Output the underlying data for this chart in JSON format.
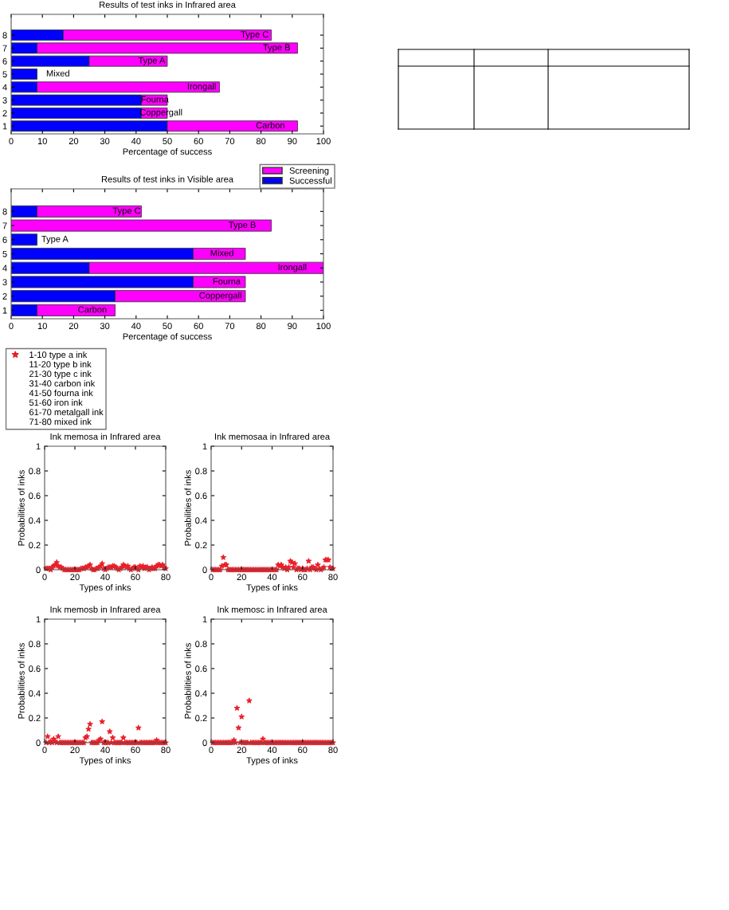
{
  "chart_data": [
    {
      "type": "bar",
      "orientation": "horizontal",
      "stacked": true,
      "title": "Results of test inks in Infrared area",
      "xlabel": "Percentage of success",
      "categories": [
        "8",
        "7",
        "6",
        "5",
        "4",
        "3",
        "2",
        "1"
      ],
      "series": [
        {
          "name": "Successful",
          "color": "#0000ff",
          "values": [
            16.7,
            8.3,
            25,
            8.3,
            8.3,
            41.7,
            41.7,
            50
          ]
        },
        {
          "name": "Screening",
          "color": "#ff00ff",
          "values": [
            66.6,
            83.4,
            25,
            0,
            58.4,
            8.3,
            8.3,
            41.7
          ]
        }
      ],
      "xlim": [
        0,
        100
      ],
      "xticks": [
        0,
        10,
        20,
        30,
        40,
        50,
        60,
        70,
        80,
        90,
        100
      ],
      "grid": false,
      "legend": "bottom right",
      "annotations": [
        {
          "text": "Type C",
          "x": 78,
          "y": "8"
        },
        {
          "text": "Type B",
          "x": 85,
          "y": "7"
        },
        {
          "text": "Type A",
          "x": 45,
          "y": "6"
        },
        {
          "text": "Mixed",
          "x": 15,
          "y": "5"
        },
        {
          "text": "Irongall",
          "x": 61,
          "y": "4"
        },
        {
          "text": "Fourna",
          "x": 46,
          "y": "3"
        },
        {
          "text": "Coppergall",
          "x": 48,
          "y": "2"
        },
        {
          "text": "Carbon",
          "x": 83,
          "y": "1"
        }
      ]
    },
    {
      "type": "bar",
      "orientation": "horizontal",
      "stacked": true,
      "title": "Results of test inks in Visible area",
      "xlabel": "Percentage of success",
      "categories": [
        "8",
        "7",
        "6",
        "5",
        "4",
        "3",
        "2",
        "1"
      ],
      "series": [
        {
          "color": "#0000ff",
          "values": [
            8.3,
            0,
            8.3,
            58.3,
            25,
            58.3,
            33.3,
            8.3
          ]
        },
        {
          "color": "#ff00ff",
          "values": [
            33.4,
            83.3,
            0,
            16.7,
            75,
            16.7,
            41.7,
            25
          ]
        }
      ],
      "xlim": [
        0,
        100
      ],
      "xticks": [
        0,
        10,
        20,
        30,
        40,
        50,
        60,
        70,
        80,
        90,
        100
      ],
      "grid": false,
      "legend": false,
      "annotations": [
        {
          "text": "Type C",
          "x": 37,
          "y": "8"
        },
        {
          "text": "Type B",
          "x": 74,
          "y": "7"
        },
        {
          "text": "Type A",
          "x": 14,
          "y": "6"
        },
        {
          "text": "Mixed",
          "x": 67.5,
          "y": "5"
        },
        {
          "text": "Irongall",
          "x": 90,
          "y": "4"
        },
        {
          "text": "Fourna",
          "x": 69,
          "y": "3"
        },
        {
          "text": "Coppergall",
          "x": 67,
          "y": "2"
        },
        {
          "text": "Carbon",
          "x": 26,
          "y": "1"
        }
      ]
    },
    {
      "type": "scatter",
      "title": "Ink memosa in Infrared area",
      "xlabel": "Types of inks",
      "ylabel": "Probabilities of inks",
      "marker": "star",
      "grid": false,
      "legend": "top left",
      "x": [
        1,
        2,
        3,
        4,
        5,
        6,
        7,
        8,
        9,
        10,
        11,
        12,
        13,
        14,
        15,
        16,
        17,
        18,
        19,
        20,
        21,
        22,
        23,
        24,
        25,
        26,
        27,
        28,
        29,
        30,
        31,
        32,
        33,
        34,
        35,
        36,
        37,
        38,
        39,
        40,
        41,
        42,
        43,
        44,
        45,
        46,
        47,
        48,
        49,
        50,
        51,
        52,
        53,
        54,
        55,
        56,
        57,
        58,
        59,
        60,
        61,
        62,
        63,
        64,
        65,
        66,
        67,
        68,
        69,
        70,
        71,
        72,
        73,
        74,
        75,
        76,
        77,
        78,
        79,
        80
      ],
      "series": [
        {
          "name": "1-10 type a ink",
          "color": "#e8202a",
          "values": [
            0.01,
            0.01,
            0.01,
            0,
            0.02,
            0.03,
            0.04,
            0.06,
            0.03,
            0.02,
            0.02,
            0.01,
            0,
            0,
            0,
            0,
            0,
            0,
            0,
            0,
            0,
            0,
            0,
            0.01,
            0.01,
            0.01,
            0.02,
            0.02,
            0.03,
            0.04,
            0.01,
            0,
            0,
            0.01,
            0.01,
            0.02,
            0.03,
            0.05,
            0.01,
            0,
            0.01,
            0.02,
            0.02,
            0.02,
            0.03,
            0.03,
            0.02,
            0.01,
            0,
            0.01,
            0.02,
            0.04,
            0.03,
            0.02,
            0.03,
            0.01,
            0,
            0.01,
            0.02,
            0.02,
            0.01,
            0,
            0.03,
            0.02,
            0.03,
            0.01,
            0.02,
            0.02,
            0,
            0.01,
            0.02,
            0.01,
            0.01,
            0.03,
            0.04,
            0.04,
            0.03,
            0.04,
            0.02,
            0.01
          ]
        }
      ],
      "annotations": [
        "11-20 type b ink",
        "21-30 type c ink",
        "31-40 carbon ink",
        "41-50 fourna ink",
        "51-60 iron ink",
        "61-70 metalgall ink",
        "71-80 mixed ink"
      ],
      "xlim": [
        0,
        80
      ],
      "xticks": [
        0,
        20,
        40,
        60,
        80
      ],
      "ylim": [
        0,
        1
      ],
      "yticks": [
        0,
        0.2,
        0.4,
        0.6,
        0.8,
        1
      ]
    },
    {
      "type": "scatter",
      "title": "Ink memosaa in Infrared area",
      "xlabel": "Types of inks",
      "ylabel": "Probabilities of inks",
      "marker": "star",
      "grid": false,
      "x": [
        1,
        2,
        3,
        4,
        5,
        6,
        7,
        8,
        9,
        10,
        11,
        12,
        13,
        14,
        15,
        16,
        17,
        18,
        19,
        20,
        21,
        22,
        23,
        24,
        25,
        26,
        27,
        28,
        29,
        30,
        31,
        32,
        33,
        34,
        35,
        36,
        37,
        38,
        39,
        40,
        41,
        42,
        43,
        44,
        45,
        46,
        47,
        48,
        49,
        50,
        51,
        52,
        53,
        54,
        55,
        56,
        57,
        58,
        59,
        60,
        61,
        62,
        63,
        64,
        65,
        66,
        67,
        68,
        69,
        70,
        71,
        72,
        73,
        74,
        75,
        76,
        77,
        78,
        79,
        80
      ],
      "series": [
        {
          "color": "#e8202a",
          "values": [
            0,
            0,
            0,
            0,
            0,
            0,
            0.03,
            0.1,
            0.04,
            0.04,
            0,
            0,
            0,
            0,
            0,
            0,
            0,
            0,
            0,
            0,
            0,
            0,
            0,
            0,
            0,
            0,
            0,
            0,
            0,
            0,
            0,
            0,
            0,
            0,
            0,
            0,
            0,
            0,
            0,
            0,
            0,
            0,
            0,
            0.04,
            0.03,
            0.04,
            0.02,
            0.01,
            0.02,
            0,
            0.02,
            0.07,
            0.06,
            0.02,
            0.05,
            0,
            0.01,
            0.01,
            0,
            0.01,
            0,
            0,
            0.01,
            0.07,
            0,
            0.02,
            0.02,
            0.01,
            0,
            0.04,
            0.01,
            0,
            0.01,
            0.02,
            0.08,
            0.08,
            0.08,
            0.02,
            0.01,
            0.01
          ]
        }
      ],
      "xlim": [
        0,
        80
      ],
      "xticks": [
        0,
        20,
        40,
        60,
        80
      ],
      "ylim": [
        0,
        1
      ],
      "yticks": [
        0,
        0.2,
        0.4,
        0.6,
        0.8,
        1
      ]
    },
    {
      "type": "scatter",
      "title": "Ink memosb in Infrared area",
      "xlabel": "Types of inks",
      "ylabel": "Probabilities of inks",
      "marker": "star",
      "grid": false,
      "x": [
        1,
        2,
        3,
        4,
        5,
        6,
        7,
        8,
        9,
        10,
        11,
        12,
        13,
        14,
        15,
        16,
        17,
        18,
        19,
        20,
        21,
        22,
        23,
        24,
        25,
        26,
        27,
        28,
        29,
        30,
        31,
        32,
        33,
        34,
        35,
        36,
        37,
        38,
        39,
        40,
        41,
        42,
        43,
        44,
        45,
        46,
        47,
        48,
        49,
        50,
        51,
        52,
        53,
        54,
        55,
        56,
        57,
        58,
        59,
        60,
        61,
        62,
        63,
        64,
        65,
        66,
        67,
        68,
        69,
        70,
        71,
        72,
        73,
        74,
        75,
        76,
        77,
        78,
        79,
        80
      ],
      "series": [
        {
          "color": "#e8202a",
          "values": [
            0,
            0.05,
            0,
            0.01,
            0,
            0.03,
            0.01,
            0,
            0.05,
            0,
            0,
            0,
            0,
            0,
            0,
            0,
            0,
            0,
            0,
            0,
            0,
            0,
            0,
            0,
            0,
            0,
            0.04,
            0.05,
            0.11,
            0.15,
            0,
            0,
            0,
            0,
            0,
            0.02,
            0.03,
            0.17,
            0,
            0,
            0,
            0,
            0.09,
            0,
            0.04,
            0,
            0,
            0,
            0,
            0,
            0,
            0.04,
            0,
            0,
            0,
            0,
            0,
            0,
            0,
            0,
            0,
            0.12,
            0,
            0,
            0,
            0,
            0,
            0,
            0,
            0,
            0,
            0,
            0,
            0.02,
            0,
            0,
            0,
            0,
            0,
            0
          ]
        }
      ],
      "xlim": [
        0,
        80
      ],
      "xticks": [
        0,
        20,
        40,
        60,
        80
      ],
      "ylim": [
        0,
        1
      ],
      "yticks": [
        0,
        0.2,
        0.4,
        0.6,
        0.8,
        1
      ]
    },
    {
      "type": "scatter",
      "title": "Ink memosc in Infrared area",
      "xlabel": "Types of inks",
      "ylabel": "Probabilities of inks",
      "marker": "star",
      "grid": false,
      "x": [
        1,
        2,
        3,
        4,
        5,
        6,
        7,
        8,
        9,
        10,
        11,
        12,
        13,
        14,
        15,
        16,
        17,
        18,
        19,
        20,
        21,
        22,
        23,
        24,
        25,
        26,
        27,
        28,
        29,
        30,
        31,
        32,
        33,
        34,
        35,
        36,
        37,
        38,
        39,
        40,
        41,
        42,
        43,
        44,
        45,
        46,
        47,
        48,
        49,
        50,
        51,
        52,
        53,
        54,
        55,
        56,
        57,
        58,
        59,
        60,
        61,
        62,
        63,
        64,
        65,
        66,
        67,
        68,
        69,
        70,
        71,
        72,
        73,
        74,
        75,
        76,
        77,
        78,
        79,
        80
      ],
      "series": [
        {
          "color": "#e8202a",
          "values": [
            0,
            0,
            0,
            0,
            0,
            0,
            0,
            0,
            0,
            0,
            0,
            0,
            0,
            0,
            0.02,
            0,
            0.28,
            0.12,
            0,
            0.21,
            0,
            0,
            0,
            0,
            0.34,
            0,
            0,
            0,
            0,
            0,
            0,
            0,
            0,
            0.03,
            0,
            0,
            0,
            0,
            0,
            0,
            0,
            0,
            0,
            0,
            0,
            0,
            0,
            0,
            0,
            0,
            0,
            0,
            0,
            0,
            0,
            0,
            0,
            0,
            0,
            0,
            0,
            0,
            0,
            0,
            0,
            0,
            0,
            0,
            0,
            0,
            0,
            0,
            0,
            0,
            0,
            0,
            0,
            0,
            0,
            0
          ]
        }
      ],
      "xlim": [
        0,
        80
      ],
      "xticks": [
        0,
        20,
        40,
        60,
        80
      ],
      "ylim": [
        0,
        1
      ],
      "yticks": [
        0,
        0.2,
        0.4,
        0.6,
        0.8,
        1
      ]
    }
  ]
}
